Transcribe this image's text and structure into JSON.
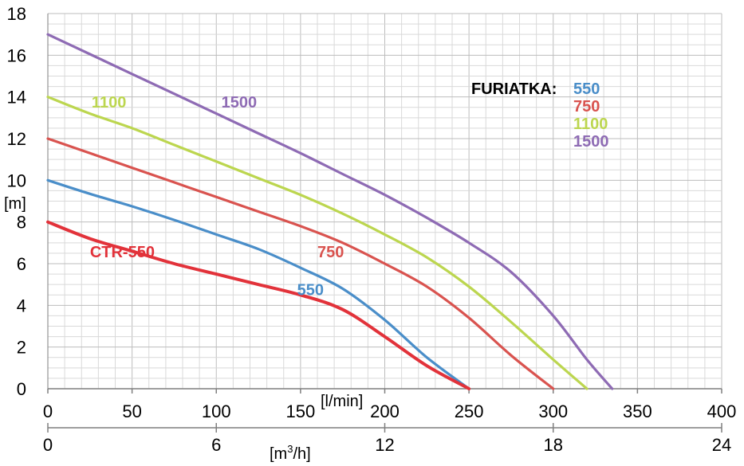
{
  "chart_data": {
    "type": "line",
    "xlabel": "[l/min]",
    "ylabel": "[m]",
    "secondary_xlabel": "[m³/h]",
    "xlim": [
      0,
      400
    ],
    "ylim": [
      0,
      18
    ],
    "x_ticks": [
      "0",
      "50",
      "100",
      "150",
      "200",
      "250",
      "300",
      "350",
      "400"
    ],
    "y_ticks": [
      "0",
      "2",
      "4",
      "6",
      "8",
      "10",
      "12",
      "14",
      "16",
      "18"
    ],
    "secondary_x_ticks": [
      "0",
      "6",
      "12",
      "18",
      "24"
    ],
    "grid": true,
    "legend": {
      "title": "FURIATKA:",
      "entries": [
        "550",
        "750",
        "1100",
        "1500"
      ]
    },
    "series": [
      {
        "name": "CTR-550",
        "color": "#e2323a",
        "x": [
          0,
          25,
          50,
          75,
          100,
          125,
          150,
          175,
          200,
          225,
          250
        ],
        "y": [
          8,
          7.2,
          6.6,
          6.0,
          5.5,
          5.0,
          4.5,
          3.8,
          2.5,
          1.1,
          0
        ]
      },
      {
        "name": "550",
        "color": "#4a8ec9",
        "x": [
          0,
          25,
          50,
          75,
          100,
          125,
          150,
          175,
          200,
          225,
          250
        ],
        "y": [
          10,
          9.35,
          8.75,
          8.1,
          7.4,
          6.7,
          5.8,
          4.8,
          3.3,
          1.5,
          0
        ]
      },
      {
        "name": "750",
        "color": "#d9534f",
        "x": [
          0,
          25,
          50,
          75,
          100,
          125,
          150,
          175,
          200,
          225,
          250,
          275,
          300
        ],
        "y": [
          12,
          11.3,
          10.6,
          9.9,
          9.2,
          8.5,
          7.8,
          7.0,
          6.0,
          4.9,
          3.4,
          1.6,
          0
        ]
      },
      {
        "name": "1100",
        "color": "#bcd64f",
        "x": [
          0,
          25,
          50,
          75,
          100,
          125,
          150,
          175,
          200,
          225,
          250,
          275,
          300,
          320
        ],
        "y": [
          14,
          13.2,
          12.5,
          11.7,
          10.9,
          10.1,
          9.3,
          8.4,
          7.4,
          6.3,
          4.9,
          3.2,
          1.4,
          0
        ]
      },
      {
        "name": "1500",
        "color": "#8e6bb4",
        "x": [
          0,
          25,
          50,
          75,
          100,
          125,
          150,
          175,
          200,
          225,
          250,
          275,
          300,
          320,
          335
        ],
        "y": [
          17,
          16.05,
          15.1,
          14.15,
          13.2,
          12.25,
          11.3,
          10.3,
          9.3,
          8.2,
          7.0,
          5.6,
          3.5,
          1.4,
          0
        ]
      }
    ]
  }
}
